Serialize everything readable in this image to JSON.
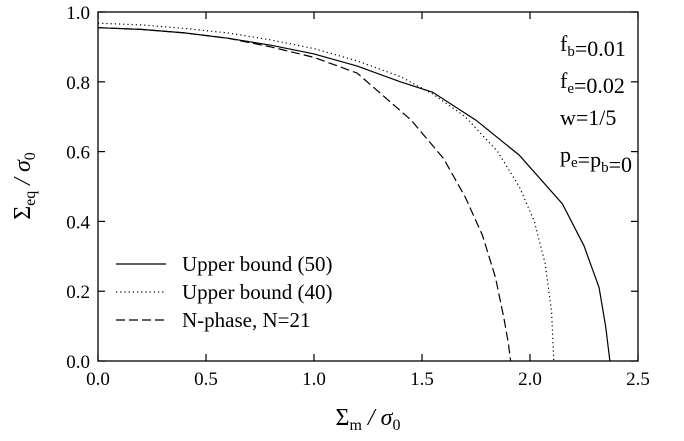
{
  "chart_data": {
    "type": "line",
    "xlim": [
      0,
      2.5
    ],
    "ylim": [
      0,
      1.0
    ],
    "xticks": [
      0.0,
      0.5,
      1.0,
      1.5,
      2.0,
      2.5
    ],
    "yticks": [
      0.0,
      0.2,
      0.4,
      0.6,
      0.8,
      1.0
    ],
    "xtick_labels": [
      "0.0",
      "0.5",
      "1.0",
      "1.5",
      "2.0",
      "2.5"
    ],
    "ytick_labels": [
      "0.0",
      "0.2",
      "0.4",
      "0.6",
      "0.8",
      "1.0"
    ],
    "xlabel": {
      "main": "Σ",
      "sub": "m",
      "rest": " / σ",
      "sub2": "0"
    },
    "ylabel": {
      "main": "Σ",
      "sub": "eq",
      "rest": " / σ",
      "sub2": "0"
    },
    "grid": false,
    "legend_position": "bottom-left",
    "annotations": [
      {
        "parts": [
          [
            "f",
            ""
          ],
          [
            "b",
            "sub"
          ],
          [
            "=0.01",
            ""
          ]
        ]
      },
      {
        "parts": [
          [
            "f",
            ""
          ],
          [
            "e",
            "sub"
          ],
          [
            "=0.02",
            ""
          ]
        ]
      },
      {
        "parts": [
          [
            "w=1/5",
            ""
          ]
        ]
      },
      {
        "parts": [
          [
            "p",
            ""
          ],
          [
            "e",
            "sub"
          ],
          [
            "=p",
            ""
          ],
          [
            "b",
            "sub"
          ],
          [
            "=0",
            ""
          ]
        ]
      }
    ],
    "series": [
      {
        "name": "Upper bound (50)",
        "dash": "solid",
        "x": [
          0.0,
          0.2,
          0.4,
          0.6,
          0.8,
          1.0,
          1.2,
          1.4,
          1.55,
          1.75,
          1.95,
          2.15,
          2.25,
          2.32,
          2.35,
          2.37
        ],
        "y": [
          0.955,
          0.95,
          0.94,
          0.925,
          0.905,
          0.88,
          0.845,
          0.8,
          0.77,
          0.69,
          0.59,
          0.45,
          0.33,
          0.21,
          0.1,
          0.0
        ]
      },
      {
        "name": "Upper bound (40)",
        "dash": "dotted",
        "x": [
          0.0,
          0.2,
          0.4,
          0.6,
          0.8,
          1.0,
          1.2,
          1.4,
          1.55,
          1.7,
          1.85,
          1.95,
          2.02,
          2.07,
          2.1,
          2.11
        ],
        "y": [
          0.968,
          0.963,
          0.953,
          0.94,
          0.92,
          0.895,
          0.86,
          0.815,
          0.765,
          0.7,
          0.6,
          0.5,
          0.4,
          0.28,
          0.14,
          0.0
        ]
      },
      {
        "name": "N-phase, N=21",
        "dash": "dashed",
        "x": [
          0.0,
          0.2,
          0.4,
          0.6,
          0.8,
          1.0,
          1.2,
          1.45,
          1.6,
          1.7,
          1.78,
          1.84,
          1.88,
          1.9,
          1.91
        ],
        "y": [
          0.955,
          0.95,
          0.94,
          0.925,
          0.9,
          0.87,
          0.825,
          0.69,
          0.58,
          0.47,
          0.36,
          0.24,
          0.12,
          0.05,
          0.0
        ]
      }
    ]
  }
}
